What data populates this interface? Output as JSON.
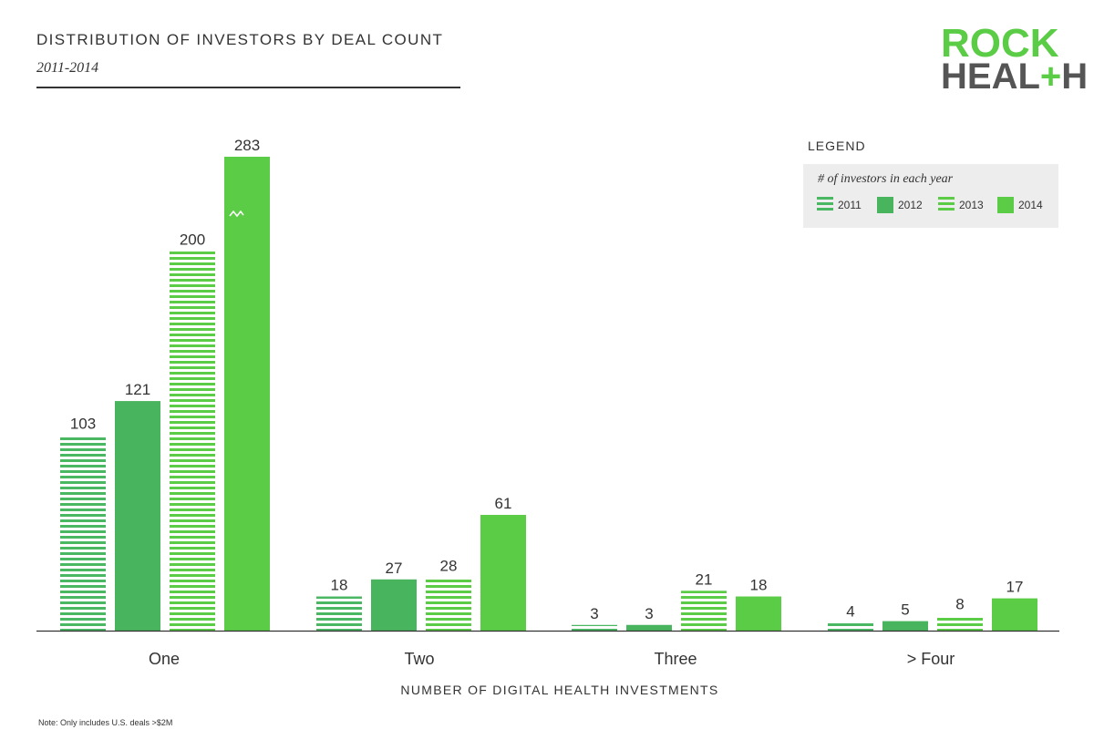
{
  "header": {
    "title": "DISTRIBUTION OF INVESTORS BY DEAL COUNT",
    "subtitle": "2011-2014"
  },
  "logo": {
    "line1": "ROCK",
    "line2_a": "HEAL",
    "line2_plus": "+",
    "line2_b": "H"
  },
  "legend": {
    "title": "LEGEND",
    "caption": "# of investors in each year",
    "items": [
      {
        "label": "2011",
        "style": "striped",
        "color": "#4ab862"
      },
      {
        "label": "2012",
        "style": "solid",
        "color": "#48b55e"
      },
      {
        "label": "2013",
        "style": "striped",
        "color": "#5acc45"
      },
      {
        "label": "2014",
        "style": "solid",
        "color": "#5acc45"
      }
    ]
  },
  "note": "Note: Only includes U.S. deals >$2M",
  "chart_data": {
    "type": "bar",
    "title": "DISTRIBUTION OF INVESTORS BY DEAL COUNT",
    "subtitle": "2011-2014",
    "xlabel": "NUMBER OF DIGITAL HEALTH INVESTMENTS",
    "ylabel": "",
    "categories": [
      "One",
      "Two",
      "Three",
      "> Four"
    ],
    "series": [
      {
        "name": "2011",
        "values": [
          103,
          18,
          3,
          4
        ],
        "style": "striped",
        "color": "#4ab862"
      },
      {
        "name": "2012",
        "values": [
          121,
          27,
          3,
          5
        ],
        "style": "solid",
        "color": "#48b55e"
      },
      {
        "name": "2013",
        "values": [
          200,
          28,
          21,
          8
        ],
        "style": "striped",
        "color": "#5acc45"
      },
      {
        "name": "2014",
        "values": [
          283,
          61,
          18,
          17
        ],
        "style": "solid",
        "color": "#5acc45"
      }
    ],
    "axis_break": {
      "series": "2014",
      "category": "One"
    },
    "ylim": [
      0,
      283
    ],
    "grid": false,
    "legend_position": "top-right"
  }
}
